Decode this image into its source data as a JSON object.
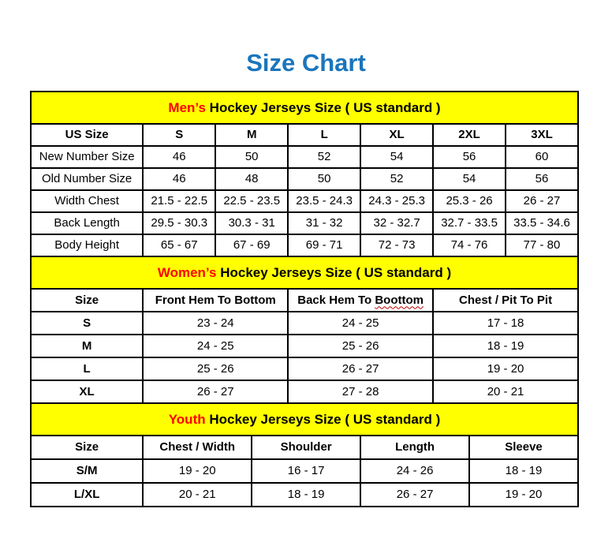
{
  "page": {
    "title": "Size Chart"
  },
  "colors": {
    "title_blue": "#1B75BC",
    "band_yellow": "#FFFF00",
    "accent_red": "#FF0000",
    "border": "#000000"
  },
  "men": {
    "band_red": "Men’s",
    "band_rest": " Hockey Jerseys Size ( US standard )",
    "headers": [
      "US Size",
      "S",
      "M",
      "L",
      "XL",
      "2XL",
      "3XL"
    ],
    "rows": [
      {
        "label": "New Number Size",
        "values": [
          "46",
          "50",
          "52",
          "54",
          "56",
          "60"
        ]
      },
      {
        "label": "Old Number Size",
        "values": [
          "46",
          "48",
          "50",
          "52",
          "54",
          "56"
        ]
      },
      {
        "label": "Width Chest",
        "values": [
          "21.5 - 22.5",
          "22.5 - 23.5",
          "23.5 - 24.3",
          "24.3 - 25.3",
          "25.3 - 26",
          "26 - 27"
        ]
      },
      {
        "label": "Back Length",
        "values": [
          "29.5 - 30.3",
          "30.3 - 31",
          "31 - 32",
          "32 - 32.7",
          "32.7 - 33.5",
          "33.5 - 34.6"
        ]
      },
      {
        "label": "Body Height",
        "values": [
          "65 - 67",
          "67 - 69",
          "69 - 71",
          "72 - 73",
          "74 - 76",
          "77 - 80"
        ]
      }
    ]
  },
  "women": {
    "band_red": "Women’s",
    "band_rest": " Hockey Jerseys Size ( US standard )",
    "headers": {
      "size": "Size",
      "front_hem": "Front Hem To Bottom",
      "back_hem_prefix": "Back Hem To ",
      "back_hem_wavy": "Boottom",
      "chest": "Chest / Pit To Pit"
    },
    "rows": [
      {
        "label": "S",
        "values": [
          "23 - 24",
          "24 - 25",
          "17 - 18"
        ]
      },
      {
        "label": "M",
        "values": [
          "24 - 25",
          "25 - 26",
          "18 - 19"
        ]
      },
      {
        "label": "L",
        "values": [
          "25 - 26",
          "26 - 27",
          "19 - 20"
        ]
      },
      {
        "label": "XL",
        "values": [
          "26 - 27",
          "27 - 28",
          "20 - 21"
        ]
      }
    ]
  },
  "youth": {
    "band_red": "Youth",
    "band_rest": " Hockey Jerseys Size ( US standard )",
    "headers": [
      "Size",
      "Chest / Width",
      "Shoulder",
      "Length",
      "Sleeve"
    ],
    "rows": [
      {
        "label": "S/M",
        "values": [
          "19 - 20",
          "16 - 17",
          "24 - 26",
          "18 - 19"
        ]
      },
      {
        "label": "L/XL",
        "values": [
          "20 - 21",
          "18 - 19",
          "26 - 27",
          "19 - 20"
        ]
      }
    ]
  }
}
